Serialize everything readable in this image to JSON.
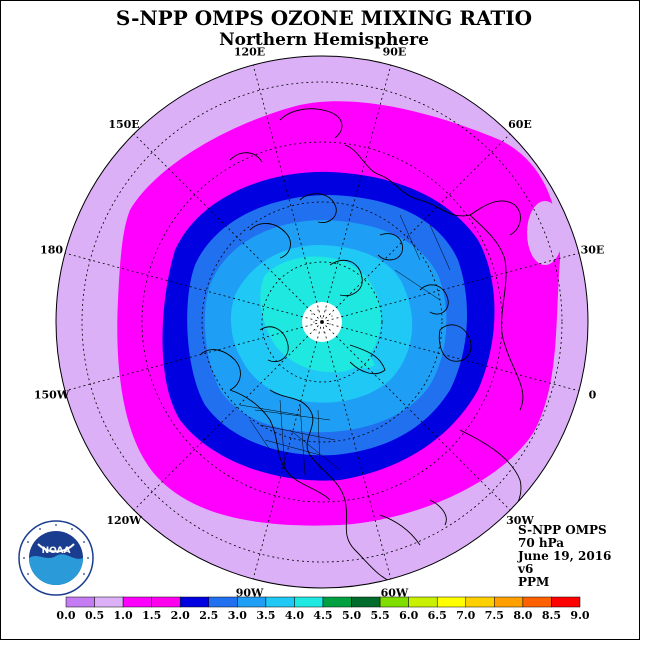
{
  "title": "S-NPP OMPS OZONE MIXING RATIO",
  "subtitle": "Northern Hemisphere",
  "info": {
    "instrument": "S-NPP OMPS",
    "level": "70 hPa",
    "date": "June 19, 2016",
    "version": "v6",
    "units": "PPM"
  },
  "longitude_labels": [
    "90E",
    "60E",
    "30E",
    "0",
    "30W",
    "60W",
    "90W",
    "120W",
    "150W",
    "180",
    "150E",
    "120E"
  ],
  "colorbar": {
    "ticks": [
      "0.0",
      "0.5",
      "1.0",
      "1.5",
      "2.0",
      "2.5",
      "3.0",
      "3.5",
      "4.0",
      "4.5",
      "5.0",
      "5.5",
      "6.0",
      "6.5",
      "7.0",
      "7.5",
      "8.0",
      "8.5",
      "9.0"
    ],
    "colors": [
      "#c47cf2",
      "#dcb0f7",
      "#ff00ff",
      "#ff00ee",
      "#0000e0",
      "#2070f0",
      "#1e9ff5",
      "#20c8f5",
      "#1ee8e0",
      "#00a040",
      "#006b2a",
      "#80dd00",
      "#c8f000",
      "#ffff00",
      "#ffd000",
      "#ffa000",
      "#ff6000",
      "#ff0000",
      "#8b5a3c"
    ]
  },
  "map_fields": {
    "projection": "north polar stereographic",
    "colors": {
      "outer": "#dcb0f7",
      "magenta": "#ff00ff",
      "darkblue": "#0000e0",
      "blue": "#2070f0",
      "lightblue": "#1e9ff5",
      "cyan": "#20c8f5",
      "aqua": "#1ee8e0"
    }
  },
  "logo": {
    "text": "NOAA",
    "ring_text": "NATIONAL OCEANIC AND ATMOSPHERIC ADMINISTRATION",
    "ring_text_bottom": "U.S. DEPARTMENT OF COMMERCE"
  }
}
